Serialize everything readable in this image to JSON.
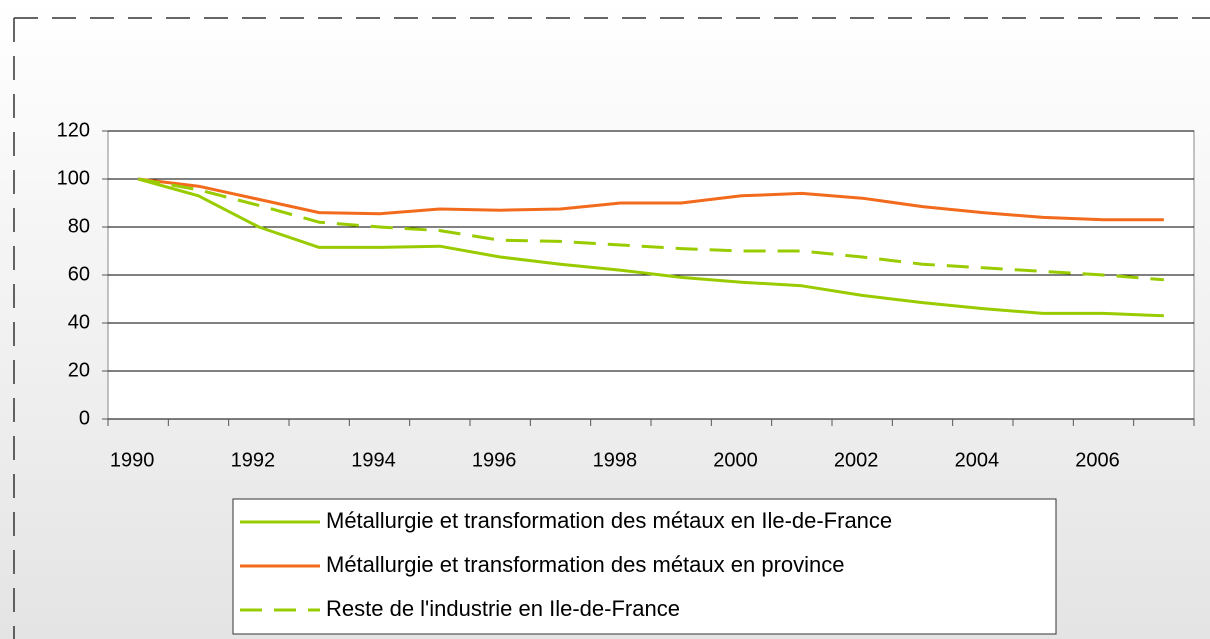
{
  "chart_data": {
    "type": "line",
    "categories": [
      "1990",
      null,
      "1992",
      null,
      "1994",
      null,
      "1996",
      null,
      "1998",
      null,
      "2000",
      null,
      "2002",
      null,
      "2004",
      null,
      "2006",
      null
    ],
    "series": [
      {
        "name": "Métallurgie et transformation des métaux en Ile-de-France",
        "color": "#99cc00",
        "dashed": false,
        "values": [
          100,
          93,
          80,
          71.5,
          71.5,
          72,
          67.5,
          64.5,
          62,
          59,
          57,
          55.5,
          51.5,
          48.5,
          46,
          44,
          44,
          43
        ]
      },
      {
        "name": "Métallurgie et transformation des métaux en province",
        "color": "#f26b1d",
        "dashed": false,
        "values": [
          100,
          97,
          91.5,
          86,
          85.5,
          87.5,
          87,
          87.5,
          90,
          90,
          93,
          94,
          92,
          88.5,
          86,
          84,
          83,
          83
        ]
      },
      {
        "name": "Reste de l'industrie en Ile-de-France",
        "color": "#99cc00",
        "dashed": true,
        "values": [
          100,
          95.5,
          89,
          82,
          80,
          78.5,
          74.5,
          74,
          72.5,
          71,
          70,
          70,
          67.5,
          64.5,
          63,
          61.5,
          60,
          58
        ]
      }
    ],
    "ylim": [
      0,
      120
    ],
    "yticks": [
      0,
      20,
      40,
      60,
      80,
      100,
      120
    ],
    "grid": true,
    "legend": "bottom"
  }
}
